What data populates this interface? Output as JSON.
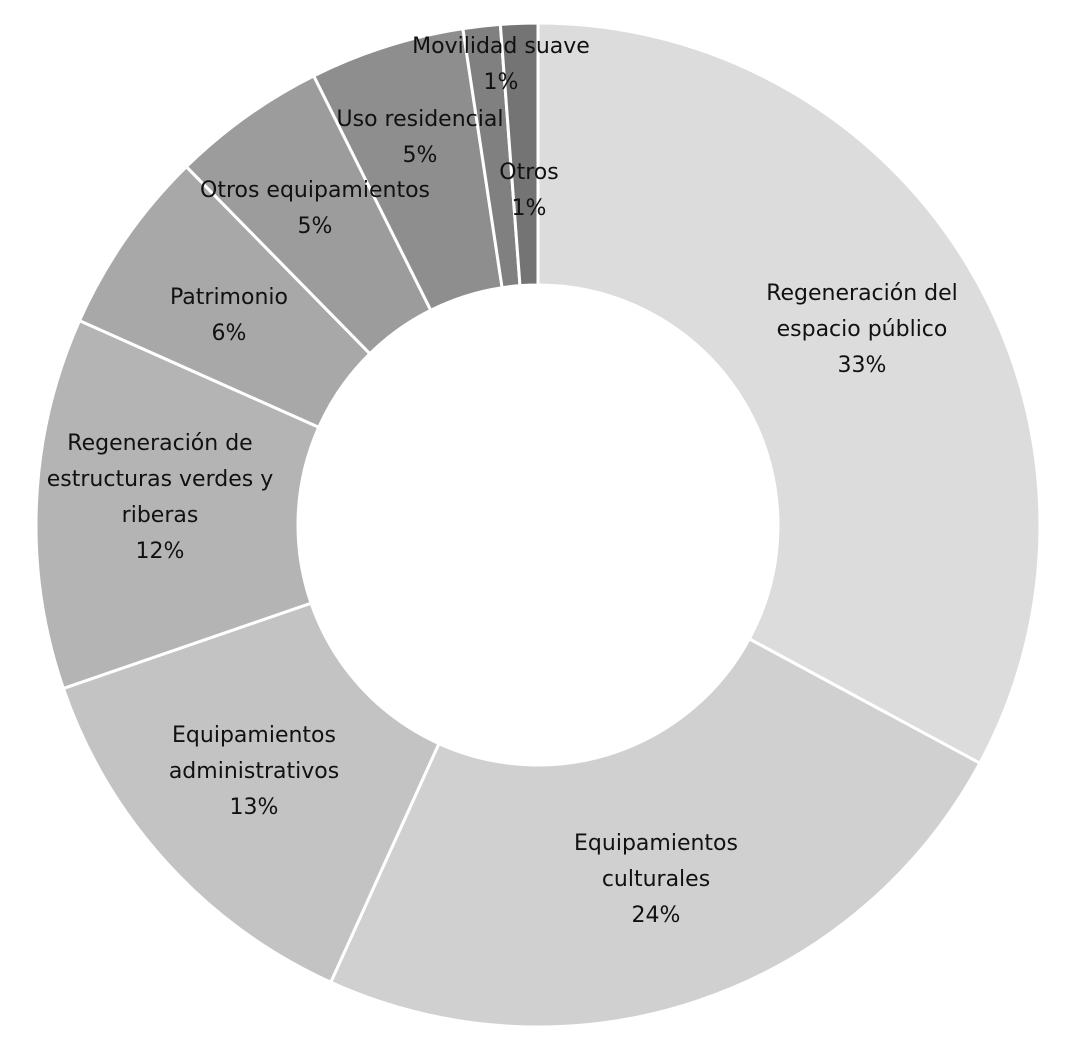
{
  "chart_data": {
    "type": "pie",
    "donut": true,
    "title": "",
    "slices": [
      {
        "lines": [
          "Regeneración del",
          "espacio público"
        ],
        "percent_label": "33%",
        "value": 33,
        "color": "#dcdcdc"
      },
      {
        "lines": [
          "Equipamientos",
          "culturales"
        ],
        "percent_label": "24%",
        "value": 24,
        "color": "#d0d0d0"
      },
      {
        "lines": [
          "Equipamientos",
          "administrativos"
        ],
        "percent_label": "13%",
        "value": 13,
        "color": "#c3c3c3"
      },
      {
        "lines": [
          "Regeneración de",
          "estructuras verdes y",
          "riberas"
        ],
        "percent_label": "12%",
        "value": 12,
        "color": "#b4b4b4"
      },
      {
        "lines": [
          "Patrimonio"
        ],
        "percent_label": "6%",
        "value": 6,
        "color": "#a8a8a8"
      },
      {
        "lines": [
          "Otros equipamientos"
        ],
        "percent_label": "5%",
        "value": 5,
        "color": "#9c9c9c"
      },
      {
        "lines": [
          "Uso residencial"
        ],
        "percent_label": "5%",
        "value": 5,
        "color": "#8e8e8e"
      },
      {
        "lines": [
          "Movilidad suave"
        ],
        "percent_label": "1%",
        "value": 1.2,
        "color": "#808080"
      },
      {
        "lines": [
          "Otros"
        ],
        "percent_label": "1%",
        "value": 1.2,
        "color": "#747474"
      }
    ]
  }
}
